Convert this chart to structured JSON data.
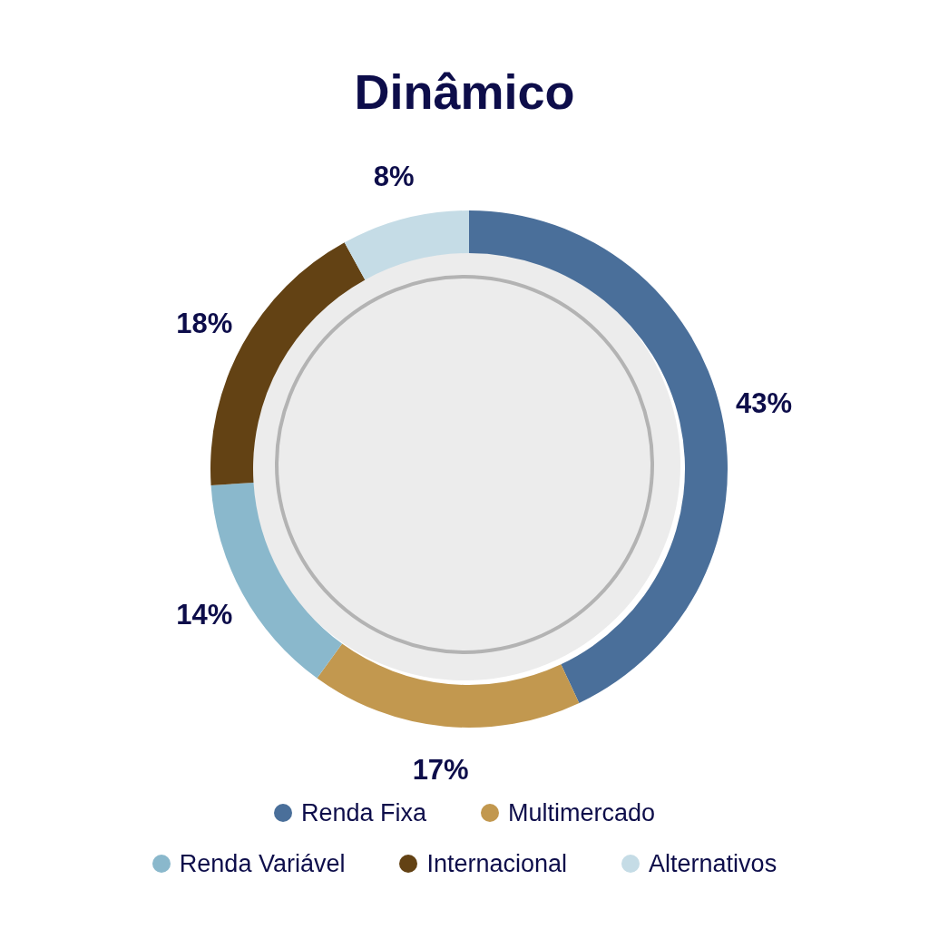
{
  "chart_data": {
    "type": "donut",
    "title": "Dinâmico",
    "categories": [
      "Renda Fixa",
      "Multimercado",
      "Renda Variável",
      "Internacional",
      "Alternativos"
    ],
    "values": [
      43,
      17,
      14,
      18,
      8
    ],
    "colors": [
      "#4a6f9a",
      "#c2984f",
      "#8ab8cc",
      "#634214",
      "#c5dce6"
    ],
    "value_labels": [
      "43%",
      "17%",
      "14%",
      "18%",
      "8%"
    ],
    "legend": "bottom"
  }
}
